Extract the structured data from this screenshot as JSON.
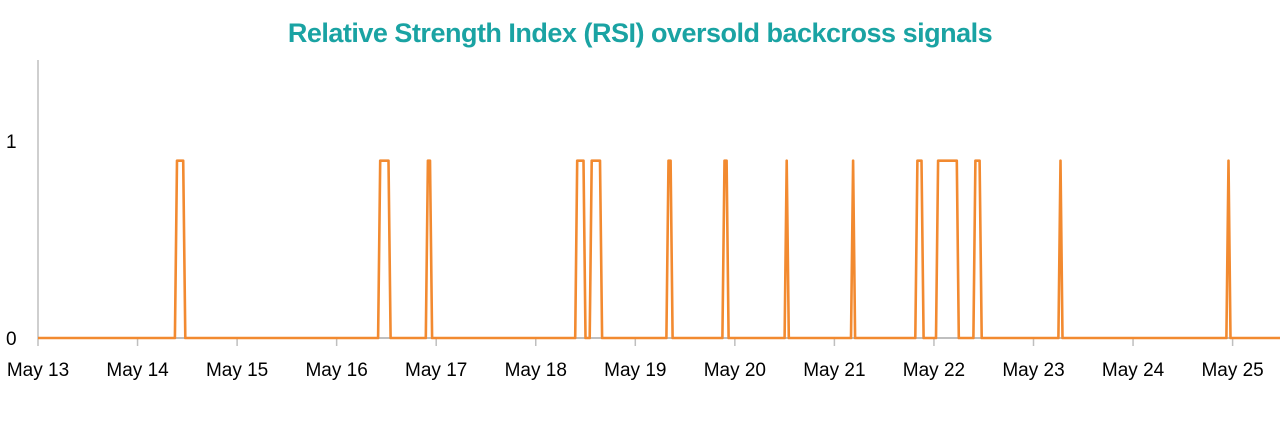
{
  "chart_data": {
    "type": "line",
    "title": "Relative Strength Index (RSI) oversold backcross signals",
    "title_color": "#1aa3a3",
    "line_color": "#f28a30",
    "axis_color": "#bfbfbf",
    "xlabel": "",
    "ylabel": "",
    "x_ticks": [
      "May 13",
      "May 14",
      "May 15",
      "May 16",
      "May 17",
      "May 18",
      "May 19",
      "May 20",
      "May 21",
      "May 22",
      "May 23",
      "May 24",
      "May 25"
    ],
    "y_ticks": [
      "0",
      "1"
    ],
    "xlim": [
      "May 13",
      "May 25 12:00"
    ],
    "ylim": [
      0,
      1.4
    ],
    "grid": false,
    "series": [
      {
        "points": [
          [
            "May 13",
            0
          ],
          [
            "May 14 09:00",
            0
          ],
          [
            "May 14 09:30",
            0.9
          ],
          [
            "May 14 11:00",
            0.9
          ],
          [
            "May 14 11:30",
            0
          ],
          [
            "May 16 10:00",
            0
          ],
          [
            "May 16 10:30",
            0.9
          ],
          [
            "May 16 12:30",
            0.9
          ],
          [
            "May 16 13:00",
            0
          ],
          [
            "May 16 21:30",
            0
          ],
          [
            "May 16 22:00",
            0.9
          ],
          [
            "May 16 22:30",
            0.9
          ],
          [
            "May 16 23:00",
            0
          ],
          [
            "May 18 09:30",
            0
          ],
          [
            "May 18 10:00",
            0.9
          ],
          [
            "May 18 11:30",
            0.9
          ],
          [
            "May 18 12:00",
            0
          ],
          [
            "May 18 13:00",
            0
          ],
          [
            "May 18 13:30",
            0.9
          ],
          [
            "May 18 15:30",
            0.9
          ],
          [
            "May 18 16:00",
            0
          ],
          [
            "May 19 07:30",
            0
          ],
          [
            "May 19 08:00",
            0.9
          ],
          [
            "May 19 08:30",
            0.9
          ],
          [
            "May 19 09:00",
            0
          ],
          [
            "May 19 21:00",
            0
          ],
          [
            "May 19 21:30",
            0.9
          ],
          [
            "May 19 22:00",
            0.9
          ],
          [
            "May 19 22:30",
            0
          ],
          [
            "May 20 12:00",
            0
          ],
          [
            "May 20 12:30",
            0.9
          ],
          [
            "May 20 13:00",
            0
          ],
          [
            "May 21 04:00",
            0
          ],
          [
            "May 21 04:30",
            0.9
          ],
          [
            "May 21 05:00",
            0
          ],
          [
            "May 21 19:30",
            0
          ],
          [
            "May 21 20:00",
            0.9
          ],
          [
            "May 21 21:00",
            0.9
          ],
          [
            "May 21 21:30",
            0
          ],
          [
            "May 22 00:30",
            0
          ],
          [
            "May 22 01:00",
            0.9
          ],
          [
            "May 22 05:30",
            0.9
          ],
          [
            "May 22 06:00",
            0
          ],
          [
            "May 22 09:30",
            0
          ],
          [
            "May 22 10:00",
            0.9
          ],
          [
            "May 22 11:00",
            0.9
          ],
          [
            "May 22 11:30",
            0
          ],
          [
            "May 23 06:00",
            0
          ],
          [
            "May 23 06:30",
            0.9
          ],
          [
            "May 23 07:00",
            0
          ],
          [
            "May 24 22:30",
            0
          ],
          [
            "May 24 23:00",
            0.9
          ],
          [
            "May 24 23:30",
            0
          ],
          [
            "May 25 12:00",
            0
          ]
        ]
      }
    ]
  }
}
